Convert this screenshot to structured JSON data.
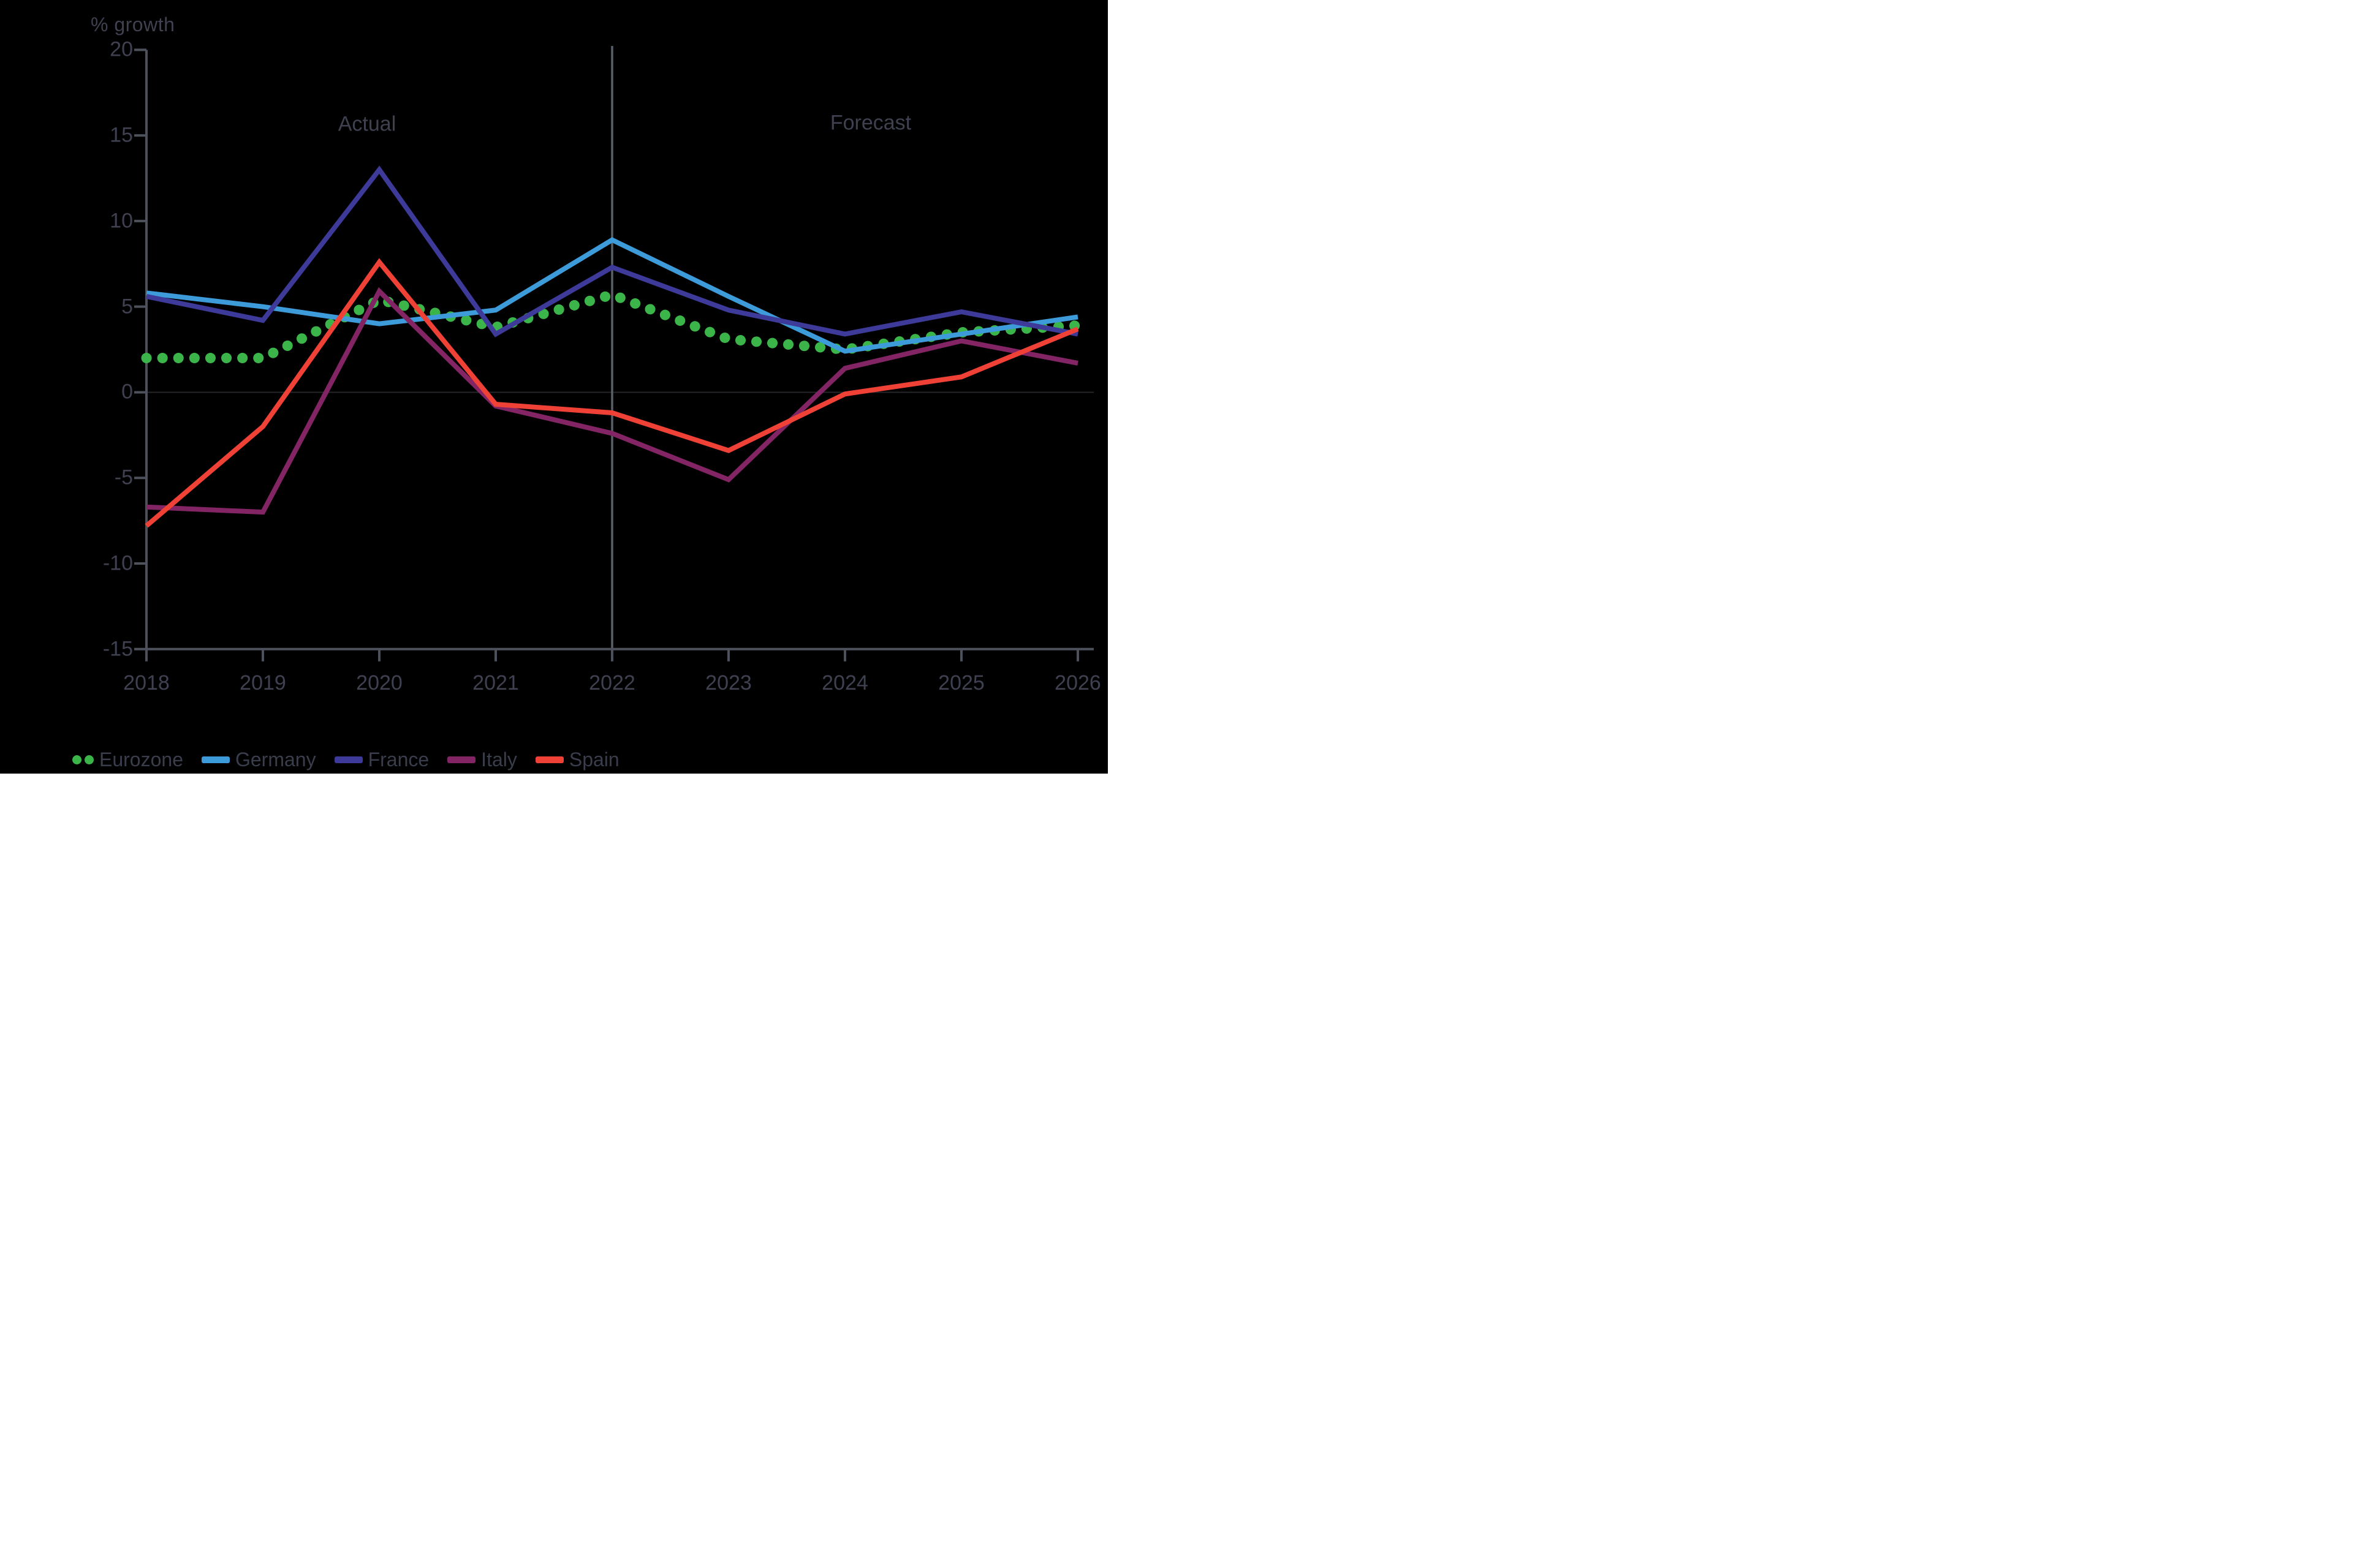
{
  "axis_title": "% growth",
  "annotations": {
    "actual": "Actual",
    "forecast": "Forecast"
  },
  "colors": {
    "background": "#000000",
    "axis": "#4C515B",
    "text": "#3F4150",
    "zero_line": "#26262B",
    "divider_line": "#596069"
  },
  "chart_data": {
    "type": "line",
    "title": "",
    "ylabel": "% growth",
    "xlabel": "",
    "ylim": [
      -15,
      20
    ],
    "y_ticks": [
      20,
      15,
      10,
      5,
      0,
      -5,
      -10,
      -15
    ],
    "x": [
      2018,
      2019,
      2020,
      2021,
      2022,
      2023,
      2024,
      2025,
      2026
    ],
    "grid": false,
    "legend_position": "bottom-left",
    "divider_x": 2022,
    "series": [
      {
        "name": "Eurozone",
        "style": "dotted",
        "color": "#3BB54A",
        "values": [
          2.0,
          2.0,
          5.4,
          3.8,
          5.7,
          3.1,
          2.5,
          3.5,
          3.9
        ]
      },
      {
        "name": "Germany",
        "style": "solid",
        "color": "#3E9BD9",
        "values": [
          5.8,
          5.0,
          4.0,
          4.8,
          8.9,
          5.6,
          2.4,
          3.4,
          4.4
        ]
      },
      {
        "name": "France",
        "style": "solid",
        "color": "#3D3A99",
        "values": [
          5.6,
          4.2,
          13.0,
          3.4,
          7.3,
          4.8,
          3.4,
          4.7,
          3.4
        ]
      },
      {
        "name": "Italy",
        "style": "solid",
        "color": "#832565",
        "values": [
          -6.7,
          -7.0,
          5.9,
          -0.8,
          -2.4,
          -5.1,
          1.4,
          3.0,
          1.7
        ]
      },
      {
        "name": "Spain",
        "style": "solid",
        "color": "#EF4136",
        "values": [
          -7.8,
          -2.0,
          7.6,
          -0.7,
          -1.2,
          -3.4,
          -0.1,
          0.9,
          3.7
        ]
      }
    ]
  }
}
